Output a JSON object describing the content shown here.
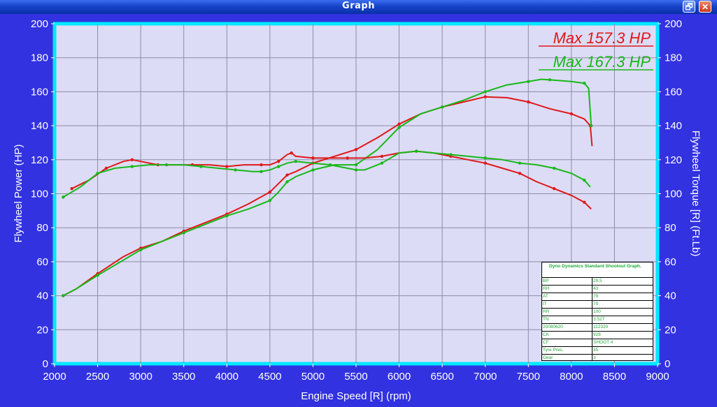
{
  "window": {
    "title": "Graph",
    "buttons": {
      "restore": "🗗",
      "close": "✕"
    }
  },
  "colors": {
    "background": "#3232e0",
    "plot_bg": "#dcdcf6",
    "plot_border": "#00e8ff",
    "grid": "#8c8ca8",
    "run1": "#e01818",
    "run2": "#18b818"
  },
  "max_labels": {
    "run1": "Max 157.3 HP",
    "run2": "Max 167.3 HP"
  },
  "info_box": {
    "title": "Dyno Dynamics Standard Shootout Graph.",
    "rows": [
      [
        "BP",
        "29.5"
      ],
      [
        "RH",
        "43"
      ],
      [
        "AT",
        "79"
      ],
      [
        "IT",
        "79"
      ],
      [
        "RR",
        "100"
      ],
      [
        "TN",
        "3.527"
      ],
      [
        "20080620",
        "112320"
      ],
      [
        "CK",
        "928"
      ],
      [
        "CF",
        "SHOOT 4"
      ],
      [
        "Tyre Pres.",
        "35"
      ],
      [
        "Gear",
        "3"
      ]
    ]
  },
  "chart_data": {
    "type": "line",
    "title": "",
    "xlabel": "Engine Speed [R] (rpm)",
    "ylabel": "Flywheel Power (HP)",
    "y2label": "Flywheel Torque [R] (Ft.Lb)",
    "xlim": [
      2000,
      9000
    ],
    "ylim": [
      0,
      200
    ],
    "y2lim": [
      0,
      200
    ],
    "xticks": [
      "2000",
      "2500",
      "3000",
      "3500",
      "4000",
      "4500",
      "5000",
      "5500",
      "6000",
      "6500",
      "7000",
      "7500",
      "8000",
      "8500",
      "9000"
    ],
    "yticks": [
      "0",
      "20",
      "40",
      "60",
      "80",
      "100",
      "120",
      "140",
      "160",
      "180",
      "200"
    ],
    "grid": true,
    "series": [
      {
        "name": "Max 157.3 HP",
        "kind": "power",
        "color": "#e01818",
        "x": [
          2100,
          2250,
          2500,
          2800,
          3000,
          3250,
          3500,
          3750,
          4000,
          4250,
          4500,
          4600,
          4700,
          4800,
          5000,
          5250,
          5500,
          5750,
          6000,
          6250,
          6500,
          6750,
          7000,
          7250,
          7500,
          7750,
          8000,
          8150,
          8220,
          8240
        ],
        "y": [
          40,
          44,
          53,
          63,
          68,
          72,
          78,
          83,
          88,
          94,
          101,
          106,
          111,
          113,
          118,
          122,
          126,
          133,
          141,
          147,
          151,
          154,
          157,
          156.5,
          154,
          150,
          147,
          144,
          140,
          128
        ]
      },
      {
        "name": "Max 167.3 HP",
        "kind": "power",
        "color": "#18b818",
        "x": [
          2100,
          2250,
          2500,
          2800,
          3000,
          3250,
          3500,
          3750,
          4000,
          4250,
          4500,
          4600,
          4700,
          4800,
          5000,
          5250,
          5500,
          5750,
          6000,
          6250,
          6500,
          6750,
          7000,
          7250,
          7500,
          7650,
          7750,
          8000,
          8150,
          8200,
          8230
        ],
        "y": [
          40,
          44,
          52,
          61,
          67,
          72,
          77,
          82,
          87,
          91,
          96,
          101,
          107,
          110,
          114,
          117,
          117,
          126,
          139,
          147,
          151,
          155,
          160,
          164,
          166,
          167.3,
          167,
          166,
          165,
          162,
          140
        ]
      },
      {
        "name": "",
        "kind": "torque",
        "color": "#e01818",
        "x": [
          2200,
          2400,
          2600,
          2800,
          2900,
          3000,
          3200,
          3400,
          3600,
          3800,
          4000,
          4200,
          4400,
          4500,
          4600,
          4700,
          4750,
          4800,
          5000,
          5200,
          5400,
          5600,
          5800,
          6000,
          6200,
          6400,
          6600,
          6800,
          7000,
          7200,
          7400,
          7600,
          7800,
          8000,
          8150,
          8230
        ],
        "y": [
          103,
          108,
          115,
          119,
          120,
          119,
          117,
          117,
          117,
          117,
          116,
          117,
          117,
          117,
          119,
          123,
          124,
          122,
          121,
          121,
          121,
          121,
          122,
          124,
          125,
          124,
          122,
          120,
          118,
          115,
          112,
          107,
          103,
          99,
          95,
          91
        ]
      },
      {
        "name": "",
        "kind": "torque",
        "color": "#18b818",
        "x": [
          2100,
          2300,
          2500,
          2700,
          2900,
          3100,
          3300,
          3500,
          3700,
          3900,
          4100,
          4300,
          4400,
          4500,
          4600,
          4700,
          4800,
          5000,
          5200,
          5400,
          5500,
          5600,
          5800,
          6000,
          6200,
          6400,
          6600,
          6800,
          7000,
          7200,
          7400,
          7600,
          7800,
          8000,
          8150,
          8220
        ],
        "y": [
          98,
          104,
          112,
          115,
          116,
          117,
          117,
          117,
          116,
          115,
          114,
          113,
          113,
          114,
          116,
          118,
          119,
          118,
          117,
          115,
          114,
          114,
          118,
          124,
          125,
          124,
          123,
          122,
          121,
          120,
          118,
          117,
          115,
          112,
          108,
          104
        ]
      }
    ]
  }
}
